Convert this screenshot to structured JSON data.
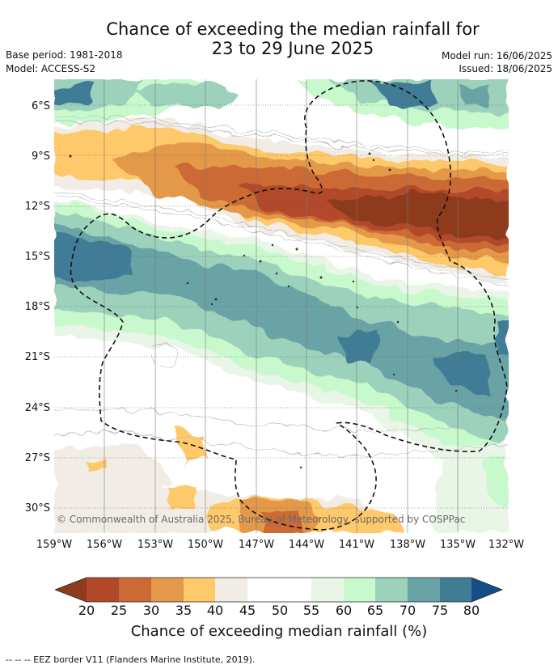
{
  "title_line1": "Chance of exceeding the median rainfall for",
  "title_line2": "23 to 29 June 2025",
  "base_period": "Base period: 1981-2018",
  "model": "Model: ACCESS-S2",
  "model_run": "Model run: 16/06/2025",
  "issued": "Issued: 18/06/2025",
  "lat_labels": [
    "6°S",
    "9°S",
    "12°S",
    "15°S",
    "18°S",
    "21°S",
    "24°S",
    "27°S",
    "30°S"
  ],
  "lon_labels": [
    "159°W",
    "156°W",
    "153°W",
    "150°W",
    "147°W",
    "144°W",
    "141°W",
    "138°W",
    "135°W",
    "132°W"
  ],
  "copyright": "© Commonwealth of Australia 2025, Bureau of Meteorology, supported by COSPPac",
  "colorbar": {
    "ticks": [
      "20",
      "25",
      "30",
      "35",
      "40",
      "45",
      "50",
      "55",
      "60",
      "65",
      "70",
      "75",
      "80"
    ],
    "colors": [
      "#8e3a1e",
      "#b1482a",
      "#cc6a35",
      "#e4994a",
      "#fec96b",
      "#f1ede6",
      "#ffffff",
      "#ffffff",
      "#e9f5e7",
      "#c8f9cd",
      "#9cd2bb",
      "#6aa3a6",
      "#417c95",
      "#134f86"
    ],
    "label": "Chance of exceeding median rainfall (%)"
  },
  "eez_legend": "--  --  -- EEZ border V11 (Flanders Marine Institute, 2019)."
}
